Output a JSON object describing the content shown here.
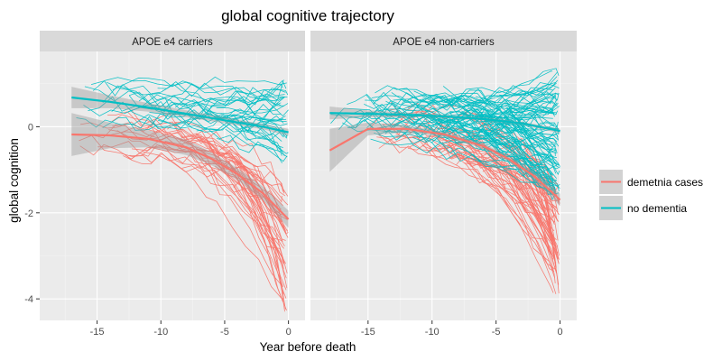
{
  "chart_data": {
    "type": "line",
    "title": "global cognitive trajectory",
    "xlabel": "Year before death",
    "ylabel": "global cognition",
    "xlim": [
      -19.5,
      1.3
    ],
    "ylim": [
      -4.5,
      1.75
    ],
    "xticks": [
      -15,
      -10,
      -5,
      0
    ],
    "xtick_labels": [
      "-15",
      "-10",
      "-5",
      "0"
    ],
    "yticks": [
      0,
      -2,
      -4
    ],
    "ytick_labels": [
      "0",
      "-2",
      "-4"
    ],
    "grid": true,
    "legend_position": "right",
    "colors": {
      "dementia": "#F8766D",
      "no_dementia": "#00BFC4",
      "ribbon": "#999999",
      "panel_bg": "#EBEBEB",
      "strip_bg": "#D9D9D9"
    },
    "legend": [
      {
        "key": "dementia",
        "label": "demetnia cases"
      },
      {
        "key": "no_dementia",
        "label": "no dementia"
      }
    ],
    "panels": [
      {
        "label": "APOE e4 carriers",
        "smooth": {
          "dementia": {
            "x": [
              -17,
              -14,
              -11,
              -8,
              -6,
              -4,
              -2,
              0
            ],
            "y": [
              -0.18,
              -0.2,
              -0.28,
              -0.48,
              -0.75,
              -1.1,
              -1.55,
              -2.15
            ],
            "se": [
              0.5,
              0.3,
              0.2,
              0.18,
              0.15,
              0.14,
              0.16,
              0.2
            ]
          },
          "no_dementia": {
            "x": [
              -17,
              -14,
              -11,
              -8,
              -5,
              -2,
              0
            ],
            "y": [
              0.68,
              0.58,
              0.45,
              0.3,
              0.15,
              0.0,
              -0.13
            ],
            "se": [
              0.25,
              0.15,
              0.1,
              0.08,
              0.07,
              0.06,
              0.08
            ]
          }
        },
        "spaghetti": {
          "dementia": {
            "count": 42,
            "start_x": [
              -16.5,
              -3
            ],
            "start_y": [
              -1.5,
              0.5
            ],
            "end_y": [
              -4.3,
              -1.5
            ]
          },
          "no_dementia": {
            "count": 36,
            "start_x": [
              -17,
              -3
            ],
            "start_y": [
              -0.2,
              1.3
            ],
            "end_y": [
              -0.9,
              1.1
            ]
          }
        }
      },
      {
        "label": "APOE e4 non-carriers",
        "smooth": {
          "dementia": {
            "x": [
              -18,
              -15,
              -12,
              -9,
              -6,
              -4,
              -2,
              0
            ],
            "y": [
              -0.55,
              -0.05,
              -0.05,
              -0.18,
              -0.45,
              -0.75,
              -1.15,
              -1.7
            ],
            "se": [
              0.5,
              0.15,
              0.08,
              0.06,
              0.06,
              0.07,
              0.1,
              0.14
            ]
          },
          "no_dementia": {
            "x": [
              -18,
              -15,
              -12,
              -9,
              -6,
              -3,
              0
            ],
            "y": [
              0.32,
              0.3,
              0.28,
              0.24,
              0.18,
              0.08,
              -0.1
            ],
            "se": [
              0.15,
              0.08,
              0.05,
              0.04,
              0.04,
              0.04,
              0.05
            ]
          }
        },
        "spaghetti": {
          "dementia": {
            "count": 60,
            "start_x": [
              -15,
              -2
            ],
            "start_y": [
              -1.0,
              0.5
            ],
            "end_y": [
              -4.1,
              -1.3
            ]
          },
          "no_dementia": {
            "count": 90,
            "start_x": [
              -18,
              -4
            ],
            "start_y": [
              -0.3,
              1.4
            ],
            "end_y": [
              -1.6,
              1.3
            ]
          }
        }
      }
    ]
  }
}
